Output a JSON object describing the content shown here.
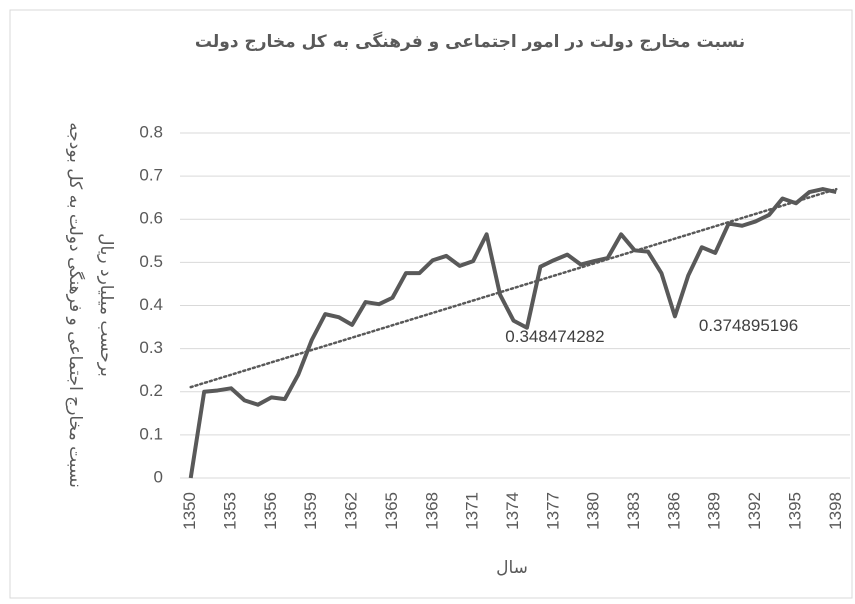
{
  "chart_data": {
    "type": "line",
    "title": "نسبت مخارج دولت در امور اجتماعی و فرهنگی به کل مخارج دولت",
    "y_label_lines": [
      "نسبت مخارج اجتماعی و فرهنگی دولت به کل بودجه",
      "برحسب میلیارد ریال"
    ],
    "x_label": "سال",
    "categories": [
      "1350",
      null,
      null,
      "1353",
      null,
      null,
      "1356",
      null,
      null,
      "1359",
      null,
      null,
      "1362",
      null,
      null,
      "1365",
      null,
      null,
      "1368",
      null,
      null,
      "1371",
      null,
      null,
      "1374",
      null,
      null,
      "1377",
      null,
      null,
      "1380",
      null,
      null,
      "1383",
      null,
      null,
      "1386",
      null,
      null,
      "1389",
      null,
      null,
      "1392",
      null,
      null,
      "1395",
      null,
      null,
      "1398"
    ],
    "series": [
      {
        "color": "#595959",
        "values": [
          0,
          0.2,
          0.203,
          0.208,
          0.18,
          0.17,
          0.187,
          0.183,
          0.24,
          0.32,
          0.38,
          0.373,
          0.355,
          0.408,
          0.403,
          0.418,
          0.475,
          0.475,
          0.505,
          0.515,
          0.492,
          0.503,
          0.565,
          0.425,
          0.365,
          0.348474282,
          0.49,
          0.505,
          0.518,
          0.495,
          0.503,
          0.51,
          0.565,
          0.528,
          0.525,
          0.475,
          0.374895196,
          0.47,
          0.535,
          0.522,
          0.59,
          0.585,
          0.595,
          0.61,
          0.648,
          0.637,
          0.663,
          0.67,
          0.663
        ],
        "value_labels": [
          null,
          null,
          null,
          null,
          null,
          null,
          null,
          null,
          null,
          null,
          null,
          null,
          null,
          null,
          null,
          null,
          null,
          null,
          null,
          null,
          null,
          null,
          null,
          null,
          null,
          "0.348474282",
          null,
          null,
          null,
          null,
          null,
          null,
          null,
          null,
          null,
          null,
          "0.374895196",
          null,
          null,
          null,
          null,
          null,
          null,
          null,
          null,
          null,
          null,
          null,
          null
        ],
        "trendline": "linear"
      }
    ],
    "ylim": [
      0,
      0.8
    ],
    "yticks": [
      0,
      0.1,
      0.2,
      0.3,
      0.4,
      0.5,
      0.6,
      0.7,
      0.8
    ],
    "grid": true
  }
}
